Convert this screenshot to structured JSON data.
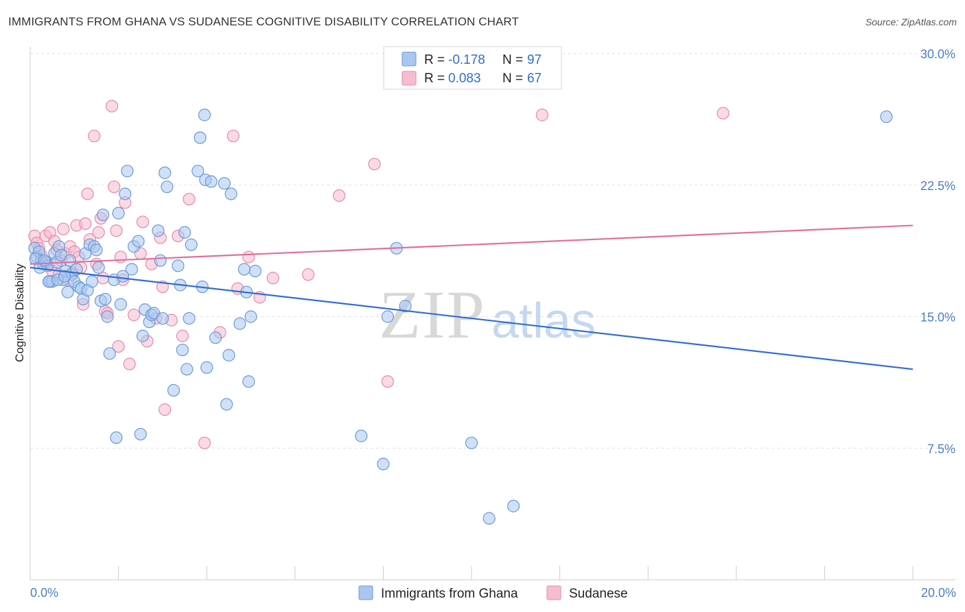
{
  "header": {
    "title": "IMMIGRANTS FROM GHANA VS SUDANESE COGNITIVE DISABILITY CORRELATION CHART",
    "source": "Source: ZipAtlas.com"
  },
  "watermark": {
    "zip": "ZIP",
    "atlas": "atlas"
  },
  "colors": {
    "blue_fill": "#a9c6ee",
    "blue_stroke": "#6a9bd8",
    "blue_line": "#2f6fd0",
    "pink_fill": "#f6bcd0",
    "pink_stroke": "#e68aab",
    "pink_line": "#e0709a",
    "tick_text": "#4a7fc6",
    "grid": "#e2e2e2"
  },
  "legend": {
    "r_label": "R =",
    "n_label": "N =",
    "series": [
      {
        "r": "-0.178",
        "n": "97"
      },
      {
        "r": "0.083",
        "n": "67"
      }
    ]
  },
  "chart_data": {
    "type": "scatter",
    "title": "IMMIGRANTS FROM GHANA VS SUDANESE COGNITIVE DISABILITY CORRELATION CHART",
    "xlabel": "",
    "ylabel": "Cognitive Disability",
    "xlim": [
      0,
      20
    ],
    "ylim": [
      0,
      30
    ],
    "x_tick_labels": [
      "0.0%",
      "20.0%"
    ],
    "y_ticks": [
      7.5,
      15.0,
      22.5,
      30.0
    ],
    "y_tick_labels": [
      "7.5%",
      "15.0%",
      "22.5%",
      "30.0%"
    ],
    "grid": true,
    "legend_position": "top-center",
    "series": [
      {
        "name": "Immigrants from Ghana",
        "r": -0.178,
        "n": 97,
        "trend": {
          "x": [
            0,
            20
          ],
          "y": [
            17.8,
            12.0
          ]
        },
        "points": [
          [
            0.1,
            18.9
          ],
          [
            0.15,
            18.4
          ],
          [
            0.2,
            18.7
          ],
          [
            0.25,
            18.2
          ],
          [
            0.3,
            18.0
          ],
          [
            0.35,
            18.1
          ],
          [
            0.4,
            17.9
          ],
          [
            0.45,
            17.0
          ],
          [
            0.5,
            17.0
          ],
          [
            0.55,
            18.6
          ],
          [
            0.6,
            18.1
          ],
          [
            0.65,
            19.0
          ],
          [
            0.7,
            18.5
          ],
          [
            0.75,
            17.1
          ],
          [
            0.8,
            17.6
          ],
          [
            0.85,
            16.4
          ],
          [
            0.9,
            18.2
          ],
          [
            0.95,
            17.4
          ],
          [
            1.0,
            17.0
          ],
          [
            1.05,
            17.7
          ],
          [
            1.1,
            16.7
          ],
          [
            1.15,
            16.6
          ],
          [
            1.2,
            16.0
          ],
          [
            1.25,
            18.6
          ],
          [
            1.3,
            16.5
          ],
          [
            1.35,
            19.1
          ],
          [
            1.4,
            17.0
          ],
          [
            1.45,
            19.0
          ],
          [
            1.5,
            18.8
          ],
          [
            1.55,
            17.8
          ],
          [
            1.6,
            15.9
          ],
          [
            1.65,
            20.8
          ],
          [
            1.7,
            16.0
          ],
          [
            1.75,
            15.0
          ],
          [
            1.8,
            12.9
          ],
          [
            1.9,
            17.1
          ],
          [
            1.95,
            8.1
          ],
          [
            2.0,
            20.9
          ],
          [
            2.05,
            15.7
          ],
          [
            2.1,
            17.3
          ],
          [
            2.15,
            22.0
          ],
          [
            2.2,
            23.3
          ],
          [
            2.3,
            17.7
          ],
          [
            2.35,
            19.0
          ],
          [
            2.45,
            19.3
          ],
          [
            2.5,
            8.3
          ],
          [
            2.55,
            13.9
          ],
          [
            2.6,
            15.4
          ],
          [
            2.7,
            14.7
          ],
          [
            2.75,
            15.1
          ],
          [
            2.8,
            15.2
          ],
          [
            2.9,
            19.9
          ],
          [
            2.95,
            18.2
          ],
          [
            3.0,
            14.9
          ],
          [
            3.05,
            23.2
          ],
          [
            3.1,
            22.4
          ],
          [
            3.25,
            10.8
          ],
          [
            3.35,
            17.9
          ],
          [
            3.4,
            16.8
          ],
          [
            3.45,
            13.1
          ],
          [
            3.5,
            19.8
          ],
          [
            3.55,
            12.0
          ],
          [
            3.6,
            14.9
          ],
          [
            3.65,
            19.1
          ],
          [
            3.8,
            23.3
          ],
          [
            3.85,
            25.2
          ],
          [
            3.9,
            16.7
          ],
          [
            3.95,
            26.5
          ],
          [
            3.97,
            22.8
          ],
          [
            4.0,
            12.1
          ],
          [
            4.1,
            22.7
          ],
          [
            4.2,
            13.8
          ],
          [
            4.4,
            22.6
          ],
          [
            4.45,
            10.0
          ],
          [
            4.5,
            12.8
          ],
          [
            4.55,
            22.0
          ],
          [
            4.75,
            14.6
          ],
          [
            4.85,
            17.7
          ],
          [
            4.9,
            16.4
          ],
          [
            4.95,
            11.3
          ],
          [
            5.0,
            15.0
          ],
          [
            5.1,
            17.6
          ],
          [
            7.5,
            8.2
          ],
          [
            8.0,
            6.6
          ],
          [
            8.1,
            15.0
          ],
          [
            8.3,
            18.9
          ],
          [
            8.5,
            15.6
          ],
          [
            10.0,
            7.8
          ],
          [
            10.4,
            3.5
          ],
          [
            10.95,
            4.2
          ],
          [
            19.4,
            26.4
          ],
          [
            0.12,
            18.3
          ],
          [
            0.22,
            17.8
          ],
          [
            0.32,
            18.2
          ],
          [
            0.42,
            17.0
          ],
          [
            0.62,
            17.1
          ],
          [
            0.78,
            17.3
          ]
        ]
      },
      {
        "name": "Sudanese",
        "r": 0.083,
        "n": 67,
        "trend": {
          "x": [
            0,
            20
          ],
          "y": [
            18.0,
            20.2
          ]
        },
        "points": [
          [
            0.1,
            19.6
          ],
          [
            0.15,
            19.2
          ],
          [
            0.2,
            18.9
          ],
          [
            0.25,
            18.5
          ],
          [
            0.3,
            18.0
          ],
          [
            0.35,
            19.6
          ],
          [
            0.45,
            19.8
          ],
          [
            0.5,
            17.6
          ],
          [
            0.55,
            19.3
          ],
          [
            0.6,
            18.8
          ],
          [
            0.65,
            17.4
          ],
          [
            0.7,
            18.2
          ],
          [
            0.75,
            20.0
          ],
          [
            0.8,
            18.6
          ],
          [
            0.85,
            17.1
          ],
          [
            0.9,
            19.0
          ],
          [
            1.0,
            18.7
          ],
          [
            1.05,
            20.2
          ],
          [
            1.1,
            18.4
          ],
          [
            1.15,
            17.8
          ],
          [
            1.2,
            15.7
          ],
          [
            1.25,
            20.3
          ],
          [
            1.3,
            22.0
          ],
          [
            1.35,
            19.4
          ],
          [
            1.45,
            25.3
          ],
          [
            1.5,
            18.0
          ],
          [
            1.55,
            19.8
          ],
          [
            1.6,
            20.6
          ],
          [
            1.65,
            17.2
          ],
          [
            1.7,
            15.3
          ],
          [
            1.75,
            15.2
          ],
          [
            1.85,
            27.0
          ],
          [
            1.9,
            22.4
          ],
          [
            1.95,
            19.9
          ],
          [
            2.0,
            13.3
          ],
          [
            2.05,
            18.4
          ],
          [
            2.1,
            17.1
          ],
          [
            2.15,
            21.5
          ],
          [
            2.25,
            12.3
          ],
          [
            2.35,
            15.1
          ],
          [
            2.5,
            18.6
          ],
          [
            2.55,
            20.4
          ],
          [
            2.65,
            13.6
          ],
          [
            2.75,
            18.0
          ],
          [
            2.85,
            14.9
          ],
          [
            2.95,
            19.5
          ],
          [
            3.0,
            16.7
          ],
          [
            3.05,
            9.7
          ],
          [
            3.2,
            14.8
          ],
          [
            3.35,
            19.6
          ],
          [
            3.45,
            13.9
          ],
          [
            3.6,
            21.7
          ],
          [
            3.95,
            7.8
          ],
          [
            4.3,
            14.1
          ],
          [
            4.6,
            25.3
          ],
          [
            4.7,
            16.6
          ],
          [
            4.95,
            18.4
          ],
          [
            5.2,
            16.1
          ],
          [
            5.5,
            17.2
          ],
          [
            6.3,
            17.4
          ],
          [
            7.0,
            21.9
          ],
          [
            7.8,
            23.7
          ],
          [
            8.1,
            11.3
          ],
          [
            11.6,
            26.5
          ],
          [
            15.7,
            26.6
          ],
          [
            0.4,
            18.0
          ],
          [
            0.95,
            17.5
          ]
        ]
      }
    ]
  }
}
